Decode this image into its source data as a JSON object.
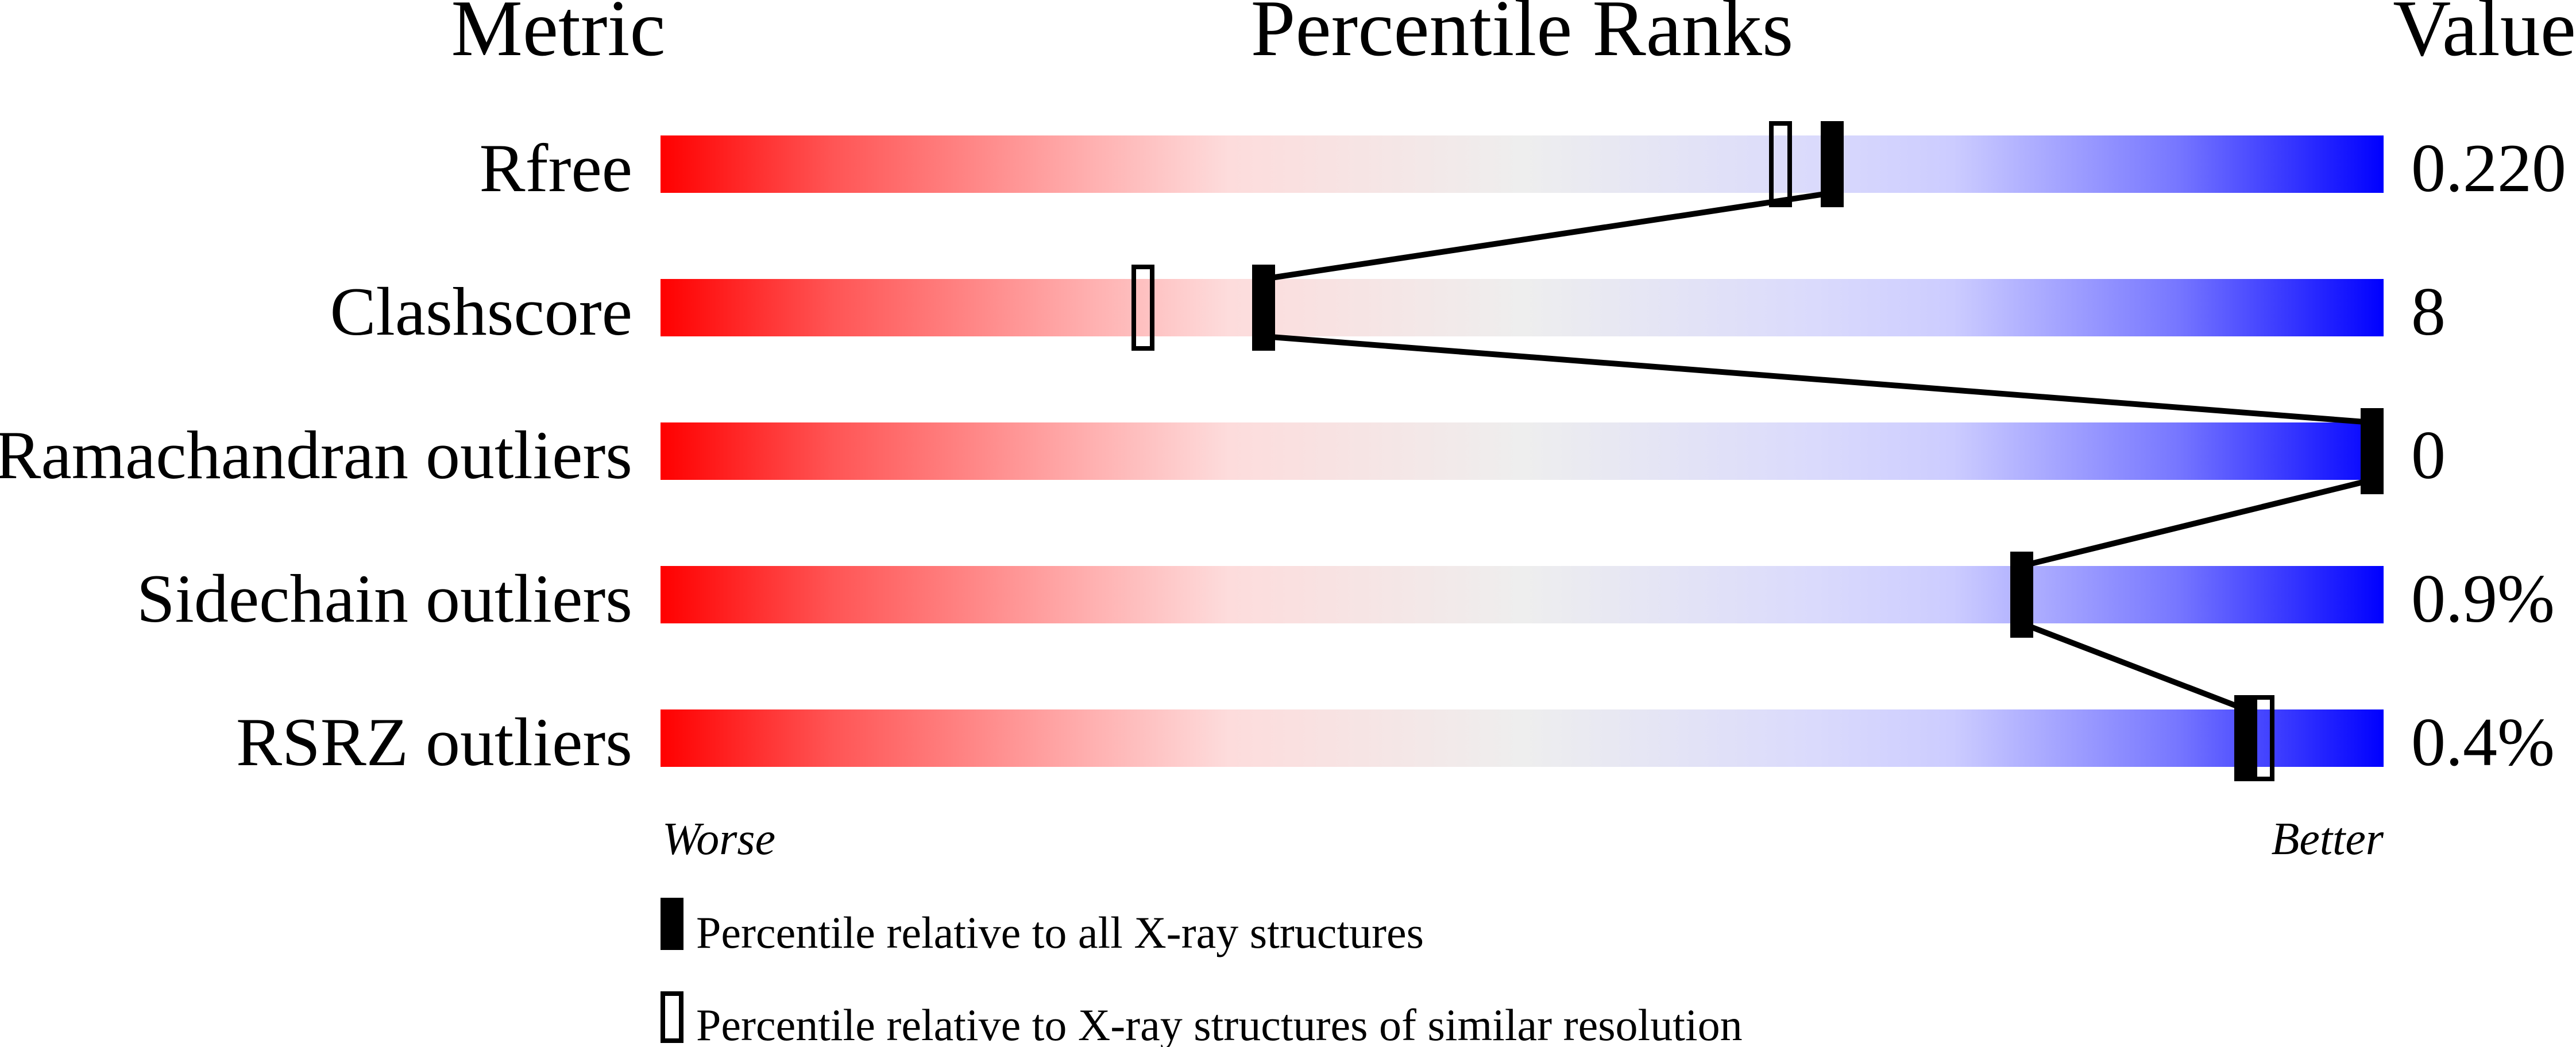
{
  "chart_data": {
    "type": "percentile-slider",
    "headers": {
      "metric": "Metric",
      "ranks": "Percentile Ranks",
      "value": "Value"
    },
    "xlim": [
      0,
      100
    ],
    "axis_labels": {
      "left": "Worse",
      "right": "Better"
    },
    "gradient_colors": {
      "worse": "#ff0000",
      "middle": "#eeeeee",
      "better": "#0000ff"
    },
    "metrics": [
      {
        "name": "Rfree",
        "value": "0.220",
        "percentile_all": 68,
        "percentile_similar": 65
      },
      {
        "name": "Clashscore",
        "value": "8",
        "percentile_all": 35,
        "percentile_similar": 28
      },
      {
        "name": "Ramachandran outliers",
        "value": "0",
        "percentile_all": 100,
        "percentile_similar": 100
      },
      {
        "name": "Sidechain outliers",
        "value": "0.9%",
        "percentile_all": 79,
        "percentile_similar": 79
      },
      {
        "name": "RSRZ outliers",
        "value": "0.4%",
        "percentile_all": 92,
        "percentile_similar": 93
      }
    ],
    "legend": [
      {
        "marker": "filled",
        "label": "Percentile relative to all X-ray structures"
      },
      {
        "marker": "open",
        "label": "Percentile relative to X-ray structures of similar resolution"
      }
    ]
  }
}
